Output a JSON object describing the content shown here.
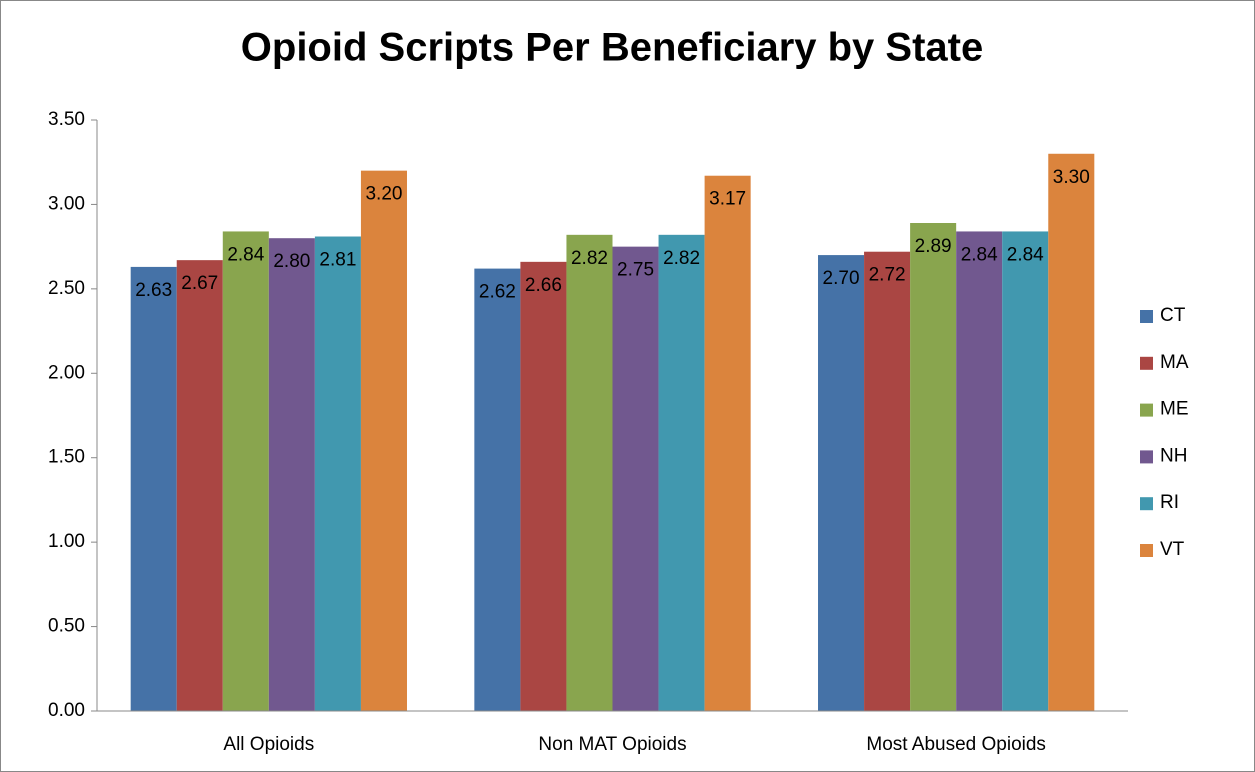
{
  "chart_data": {
    "type": "bar",
    "title": "Opioid Scripts Per Beneficiary by State",
    "categories": [
      "All Opioids",
      "Non MAT Opioids",
      "Most Abused Opioids"
    ],
    "series": [
      {
        "name": "CT",
        "color": "#4572a7",
        "values": [
          2.63,
          2.62,
          2.7
        ],
        "value_labels": [
          "2.63",
          "2.62",
          "2.70"
        ]
      },
      {
        "name": "MA",
        "color": "#aa4643",
        "values": [
          2.67,
          2.66,
          2.72
        ],
        "value_labels": [
          "2.67",
          "2.66",
          "2.72"
        ]
      },
      {
        "name": "ME",
        "color": "#89a54e",
        "values": [
          2.84,
          2.82,
          2.89
        ],
        "value_labels": [
          "2.84",
          "2.82",
          "2.89"
        ]
      },
      {
        "name": "NH",
        "color": "#71588f",
        "values": [
          2.8,
          2.75,
          2.84
        ],
        "value_labels": [
          "2.80",
          "2.75",
          "2.84"
        ]
      },
      {
        "name": "RI",
        "color": "#4198af",
        "values": [
          2.81,
          2.82,
          2.84
        ],
        "value_labels": [
          "2.81",
          "2.82",
          "2.84"
        ]
      },
      {
        "name": "VT",
        "color": "#db843d",
        "values": [
          3.2,
          3.17,
          3.3
        ],
        "value_labels": [
          "3.20",
          "3.17",
          "3.30"
        ]
      }
    ],
    "ylim": [
      0,
      3.5
    ],
    "yticks": [
      {
        "value": 0,
        "label": "0.00"
      },
      {
        "value": 0.5,
        "label": "0.50"
      },
      {
        "value": 1,
        "label": "1.00"
      },
      {
        "value": 1.5,
        "label": "1.50"
      },
      {
        "value": 2,
        "label": "2.00"
      },
      {
        "value": 2.5,
        "label": "2.50"
      },
      {
        "value": 3,
        "label": "3.00"
      },
      {
        "value": 3.5,
        "label": "3.50"
      }
    ],
    "legend": "right"
  }
}
